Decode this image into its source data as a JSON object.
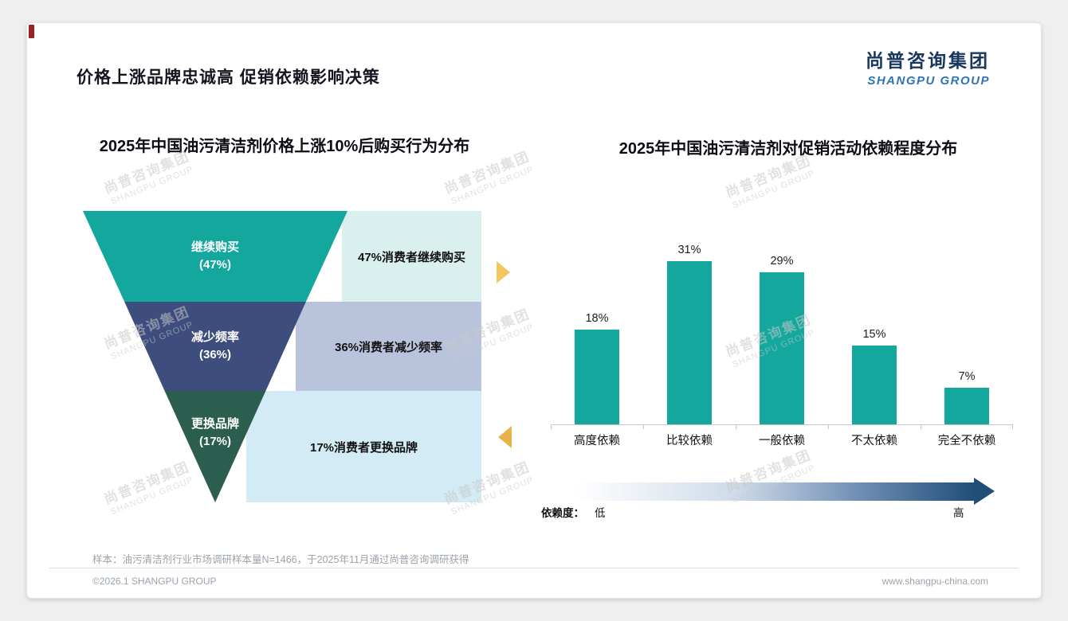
{
  "page": {
    "title": "价格上涨品牌忠诚高 促销依赖影响决策",
    "logo_cn": "尚普咨询集团",
    "logo_en": "SHANGPU GROUP",
    "watermark_cn": "尚普咨询集团",
    "watermark_en": "SHANGPU GROUP",
    "sample_note": "样本：油污清洁剂行业市场调研样本量N=1466，于2025年11月通过尚普咨询调研获得",
    "copyright": "©2026.1 SHANGPU GROUP",
    "website": "www.shangpu-china.com"
  },
  "chart_data": [
    {
      "type": "funnel",
      "title": "2025年中国油污清洁剂价格上涨10%后购买行为分布",
      "categories": [
        "继续购买",
        "减少频率",
        "更换品牌"
      ],
      "values": [
        47,
        36,
        17
      ],
      "value_labels": [
        "(47%)",
        "(36%)",
        "(17%)"
      ],
      "annotations": [
        "47%消费者继续购买",
        "36%消费者减少频率",
        "17%消费者更换品牌"
      ],
      "colors": [
        "#14a79d",
        "#3d4e7e",
        "#2c5e50"
      ],
      "tint_colors": [
        "#d9f0ee",
        "#b9c4dc",
        "#d2ebf5"
      ]
    },
    {
      "type": "bar",
      "title": "2025年中国油污清洁剂对促销活动依赖程度分布",
      "categories": [
        "高度依赖",
        "比较依赖",
        "一般依赖",
        "不太依赖",
        "完全不依赖"
      ],
      "values": [
        18,
        31,
        29,
        15,
        7
      ],
      "value_labels": [
        "18%",
        "31%",
        "29%",
        "15%",
        "7%"
      ],
      "bar_color": "#14a79d",
      "ylim": [
        0,
        35
      ],
      "grid": false,
      "legend_position": "none",
      "dependency_label": "依赖度：",
      "dependency_low": "低",
      "dependency_high": "高"
    }
  ]
}
